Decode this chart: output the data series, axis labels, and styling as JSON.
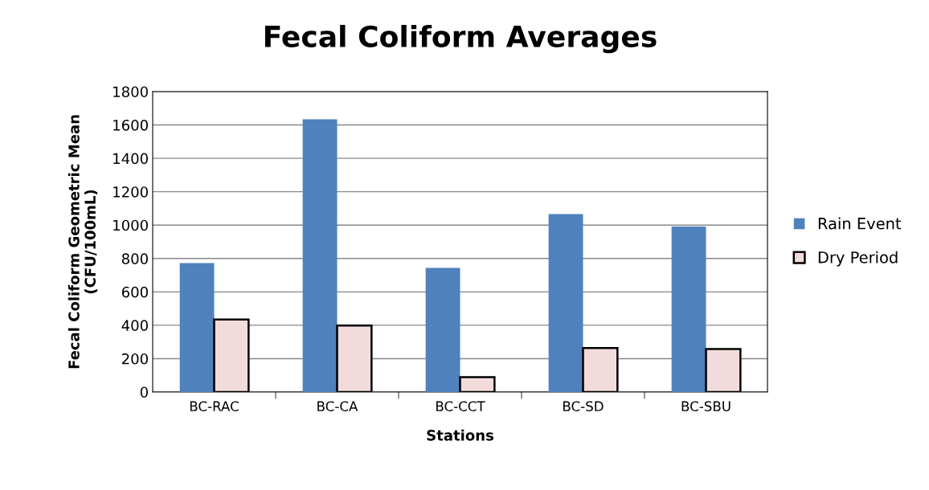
{
  "chart_data": {
    "type": "bar",
    "title": "Fecal Coliform Averages",
    "xlabel": "Stations",
    "ylabel": "Fecal Coliform Geometric Mean\n(CFU/100mL)",
    "categories": [
      "BC-RAC",
      "BC-CA",
      "BC-CCT",
      "BC-SD",
      "BC-SBU"
    ],
    "series": [
      {
        "name": "Rain Event",
        "color": "#4f81bd",
        "values": [
          773,
          1634,
          744,
          1066,
          991
        ]
      },
      {
        "name": "Dry Period",
        "color": "#f2dcdb",
        "values": [
          434,
          398,
          89,
          264,
          257
        ]
      }
    ],
    "ylim": [
      0,
      1800
    ],
    "yticks": [
      0,
      200,
      400,
      600,
      800,
      1000,
      1200,
      1400,
      1600,
      1800
    ],
    "grid": "y",
    "legend": "right"
  }
}
